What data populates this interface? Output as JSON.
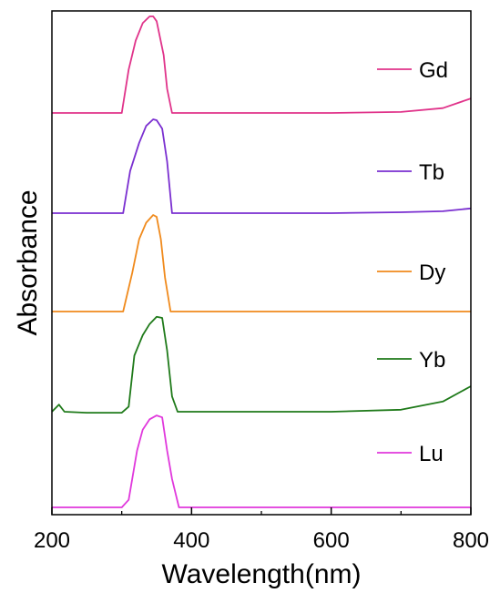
{
  "chart_data": {
    "type": "line",
    "title": "",
    "xlabel": "Wavelength(nm)",
    "ylabel": "Absorbance",
    "xlim": [
      200,
      800
    ],
    "x_ticks": [
      200,
      400,
      600,
      800
    ],
    "x_minor_ticks": [
      300,
      500,
      700
    ],
    "y_ticks_shown": false,
    "grid": false,
    "legend_placement": "right, each label beside its curve",
    "series": [
      {
        "name": "Gd",
        "color": "#e0338a",
        "points": [
          [
            200,
            0.0
          ],
          [
            280,
            0.0
          ],
          [
            295,
            0.0
          ],
          [
            300,
            0.0
          ],
          [
            310,
            0.45
          ],
          [
            320,
            0.75
          ],
          [
            330,
            0.93
          ],
          [
            340,
            1.0
          ],
          [
            345,
            1.0
          ],
          [
            350,
            0.95
          ],
          [
            360,
            0.6
          ],
          [
            365,
            0.25
          ],
          [
            372,
            0.0
          ],
          [
            380,
            0.0
          ],
          [
            500,
            0.0
          ],
          [
            600,
            0.0
          ],
          [
            700,
            0.01
          ],
          [
            760,
            0.05
          ],
          [
            800,
            0.15
          ]
        ]
      },
      {
        "name": "Tb",
        "color": "#7a2fd0",
        "points": [
          [
            200,
            0.0
          ],
          [
            295,
            0.0
          ],
          [
            302,
            0.0
          ],
          [
            312,
            0.45
          ],
          [
            325,
            0.75
          ],
          [
            335,
            0.93
          ],
          [
            345,
            1.0
          ],
          [
            350,
            0.99
          ],
          [
            358,
            0.9
          ],
          [
            365,
            0.55
          ],
          [
            372,
            0.0
          ],
          [
            380,
            0.0
          ],
          [
            500,
            0.0
          ],
          [
            600,
            0.0
          ],
          [
            700,
            0.01
          ],
          [
            760,
            0.02
          ],
          [
            800,
            0.05
          ]
        ]
      },
      {
        "name": "Dy",
        "color": "#f08a1c",
        "points": [
          [
            200,
            0.0
          ],
          [
            295,
            0.0
          ],
          [
            302,
            0.0
          ],
          [
            315,
            0.4
          ],
          [
            325,
            0.75
          ],
          [
            335,
            0.92
          ],
          [
            345,
            1.0
          ],
          [
            350,
            0.98
          ],
          [
            356,
            0.75
          ],
          [
            362,
            0.35
          ],
          [
            370,
            0.0
          ],
          [
            380,
            0.0
          ],
          [
            500,
            0.0
          ],
          [
            600,
            0.0
          ],
          [
            700,
            0.0
          ],
          [
            800,
            0.0
          ]
        ]
      },
      {
        "name": "Yb",
        "color": "#1f7a1a",
        "points": [
          [
            200,
            0.0
          ],
          [
            210,
            0.07
          ],
          [
            218,
            0.0
          ],
          [
            250,
            -0.01
          ],
          [
            300,
            -0.01
          ],
          [
            310,
            0.05
          ],
          [
            318,
            0.55
          ],
          [
            330,
            0.75
          ],
          [
            340,
            0.86
          ],
          [
            350,
            0.93
          ],
          [
            358,
            0.92
          ],
          [
            365,
            0.6
          ],
          [
            372,
            0.15
          ],
          [
            380,
            0.0
          ],
          [
            400,
            0.0
          ],
          [
            500,
            0.0
          ],
          [
            600,
            0.0
          ],
          [
            700,
            0.02
          ],
          [
            760,
            0.1
          ],
          [
            800,
            0.25
          ]
        ]
      },
      {
        "name": "Lu",
        "color": "#e038dc",
        "points": [
          [
            200,
            0.0
          ],
          [
            300,
            0.0
          ],
          [
            310,
            0.08
          ],
          [
            322,
            0.6
          ],
          [
            330,
            0.82
          ],
          [
            340,
            0.93
          ],
          [
            350,
            0.97
          ],
          [
            358,
            0.95
          ],
          [
            365,
            0.6
          ],
          [
            372,
            0.3
          ],
          [
            382,
            0.0
          ],
          [
            400,
            0.0
          ],
          [
            500,
            0.0
          ],
          [
            600,
            0.0
          ],
          [
            700,
            0.0
          ],
          [
            800,
            0.0
          ]
        ]
      }
    ]
  }
}
